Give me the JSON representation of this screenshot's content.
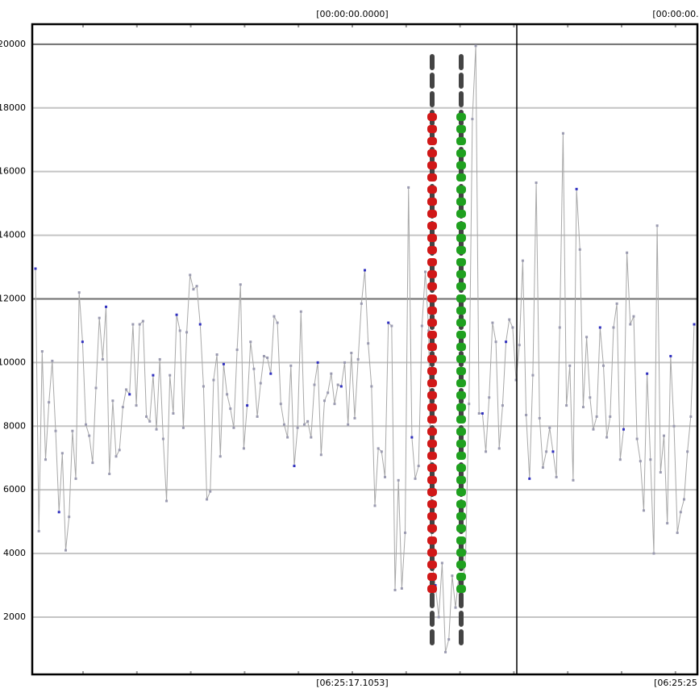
{
  "chart_data": {
    "type": "line",
    "top_labels": [
      "[00:00:00.0000]",
      "[00:00:00."
    ],
    "bottom_labels": [
      "[06:25:17.1053]",
      "[06:25:25"
    ],
    "ylim": [
      200,
      20630
    ],
    "yticks": [
      2000,
      4000,
      6000,
      8000,
      10000,
      12000,
      14000,
      16000,
      18000,
      20000
    ],
    "grid": true,
    "color": "#a8a8a8",
    "values": [
      12950,
      4700,
      10350,
      6950,
      8750,
      10050,
      7850,
      5300,
      7150,
      4100,
      5150,
      7850,
      6350,
      12200,
      10650,
      8050,
      7700,
      6850,
      9200,
      11400,
      10100,
      11750,
      6500,
      8800,
      7050,
      7250,
      8600,
      9150,
      9000,
      11200,
      8650,
      11200,
      11300,
      8300,
      8150,
      9600,
      7900,
      10100,
      7600,
      5650,
      9600,
      8400,
      11500,
      11000,
      7950,
      10950,
      12750,
      12300,
      12400,
      11200,
      9250,
      5700,
      5950,
      9450,
      10250,
      7050,
      9950,
      9000,
      8550,
      7950,
      10400,
      12450,
      7300,
      8650,
      10650,
      9800,
      8300,
      9350,
      10200,
      10150,
      9650,
      11450,
      11250,
      8700,
      8050,
      7650,
      9900,
      6750,
      7950,
      11600,
      8050,
      8150,
      7650,
      9300,
      10000,
      7100,
      8800,
      9050,
      9650,
      8700,
      9300,
      9250,
      10000,
      8050,
      10300,
      8250,
      10100,
      11850,
      12900,
      10600,
      9250,
      5500,
      7300,
      7200,
      6400,
      11250,
      11150,
      2850,
      6300,
      2900,
      4650,
      15500,
      7650,
      6350,
      6750,
      11150,
      12850,
      11000,
      3700,
      3000,
      2000,
      3700,
      900,
      1300,
      3300,
      2300,
      3300,
      2650,
      4050,
      8700,
      17650,
      19950,
      8400,
      8400,
      7200,
      8900,
      11250,
      10650,
      7300,
      8650,
      10650,
      11350,
      11100,
      9450,
      10550,
      13200,
      8350,
      6350,
      9600,
      15650,
      8250,
      6700,
      7200,
      7950,
      7200,
      6400,
      11100,
      17200,
      8650,
      9900,
      6300,
      15450,
      13550,
      8600,
      10800,
      8900,
      7900,
      8300,
      11100,
      9900,
      7650,
      8300,
      11100,
      11850,
      6950,
      7900,
      13450,
      11200,
      11450,
      7600,
      6900,
      5350,
      9650,
      6950,
      4000,
      14300,
      6550,
      7700,
      4950,
      10200,
      8000,
      4650,
      5300,
      5700,
      7200,
      8300,
      11200
    ]
  }
}
